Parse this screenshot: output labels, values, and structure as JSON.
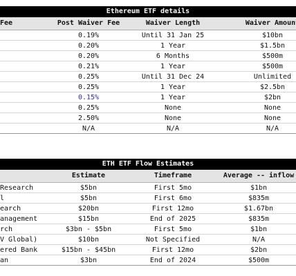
{
  "table1": {
    "title": "Ethereum ETF details",
    "headers": [
      "Fee",
      "Post Waiver Fee",
      "Waiver Length",
      "Waiver Amount"
    ],
    "rows": [
      {
        "post_fee": "0.19%",
        "length": "Until 31 Jan 25",
        "amount": "$10bn"
      },
      {
        "post_fee": "0.20%",
        "length": "1 Year",
        "amount": "$1.5bn"
      },
      {
        "post_fee": "0.20%",
        "length": "6 Months",
        "amount": "$500m"
      },
      {
        "post_fee": "0.21%",
        "length": "1 Year",
        "amount": "$500m"
      },
      {
        "post_fee": "0.25%",
        "length": "Until 31 Dec 24",
        "amount": "Unlimited"
      },
      {
        "post_fee": "0.25%",
        "length": "1 Year",
        "amount": "$2.5bn"
      },
      {
        "post_fee": "0.15%",
        "length": "1 Year",
        "amount": "$2bn",
        "highlight": true
      },
      {
        "post_fee": "0.25%",
        "length": "None",
        "amount": "None"
      },
      {
        "post_fee": "2.50%",
        "length": "None",
        "amount": "None"
      },
      {
        "post_fee": "N/A",
        "length": "N/A",
        "amount": "N/A"
      }
    ]
  },
  "table2": {
    "title": "ETH ETF Flow Estimates",
    "headers": [
      "",
      "Estimate",
      "Timeframe",
      "Average -- inflow"
    ],
    "rows": [
      {
        "source": "Research",
        "estimate": "$5bn",
        "timeframe": "First 5mo",
        "average": "$1bn"
      },
      {
        "source": "l",
        "estimate": "$5bn",
        "timeframe": "First 6mo",
        "average": "$835m"
      },
      {
        "source": "earch",
        "estimate": "$20bn",
        "timeframe": "First 12mo",
        "average": "$1.67bn"
      },
      {
        "source": "anagement",
        "estimate": "$15bn",
        "timeframe": "End of 2025",
        "average": "$835m"
      },
      {
        "source": "rch",
        "estimate": "$3bn - $5bn",
        "timeframe": "First 5mo",
        "average": "$1bn"
      },
      {
        "source": "V Global)",
        "estimate": "$10bn",
        "timeframe": "Not Specified",
        "average": "N/A"
      },
      {
        "source": "ered Bank",
        "estimate": "$15bn - $45bn",
        "timeframe": "First 12mo",
        "average": "$2bn"
      },
      {
        "source": "an",
        "estimate": "$3bn",
        "timeframe": "End of 2024",
        "average": "$500m"
      }
    ]
  },
  "colors": {
    "header_bar": "#000000",
    "header_row": "#e4e4e4",
    "highlight": "#2c2cd6"
  }
}
